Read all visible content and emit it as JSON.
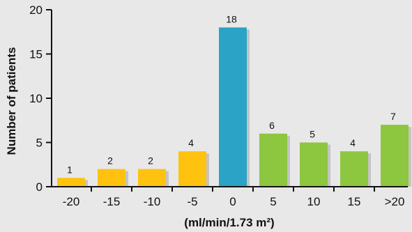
{
  "chart_data": {
    "type": "bar",
    "categories": [
      "-20",
      "-15",
      "-10",
      "-5",
      "0",
      "5",
      "10",
      "15",
      ">20"
    ],
    "values": [
      1,
      2,
      2,
      4,
      18,
      6,
      5,
      4,
      7
    ],
    "data_labels": [
      "1",
      "2",
      "2",
      "4",
      "18",
      "6",
      "5",
      "4",
      "7"
    ],
    "bar_colors": [
      "#ffc20e",
      "#ffc20e",
      "#ffc20e",
      "#ffc20e",
      "#2aa3c6",
      "#8dc63f",
      "#8dc63f",
      "#8dc63f",
      "#8dc63f"
    ],
    "shadow_color": "#c4c4c4",
    "title": "",
    "xlabel": "(ml/min/1.73 m²)",
    "ylabel": "Number of patients",
    "ylim": [
      0,
      20
    ],
    "yticks": [
      0,
      5,
      10,
      15,
      20
    ],
    "grid": false,
    "background": "#e8e8e8"
  }
}
